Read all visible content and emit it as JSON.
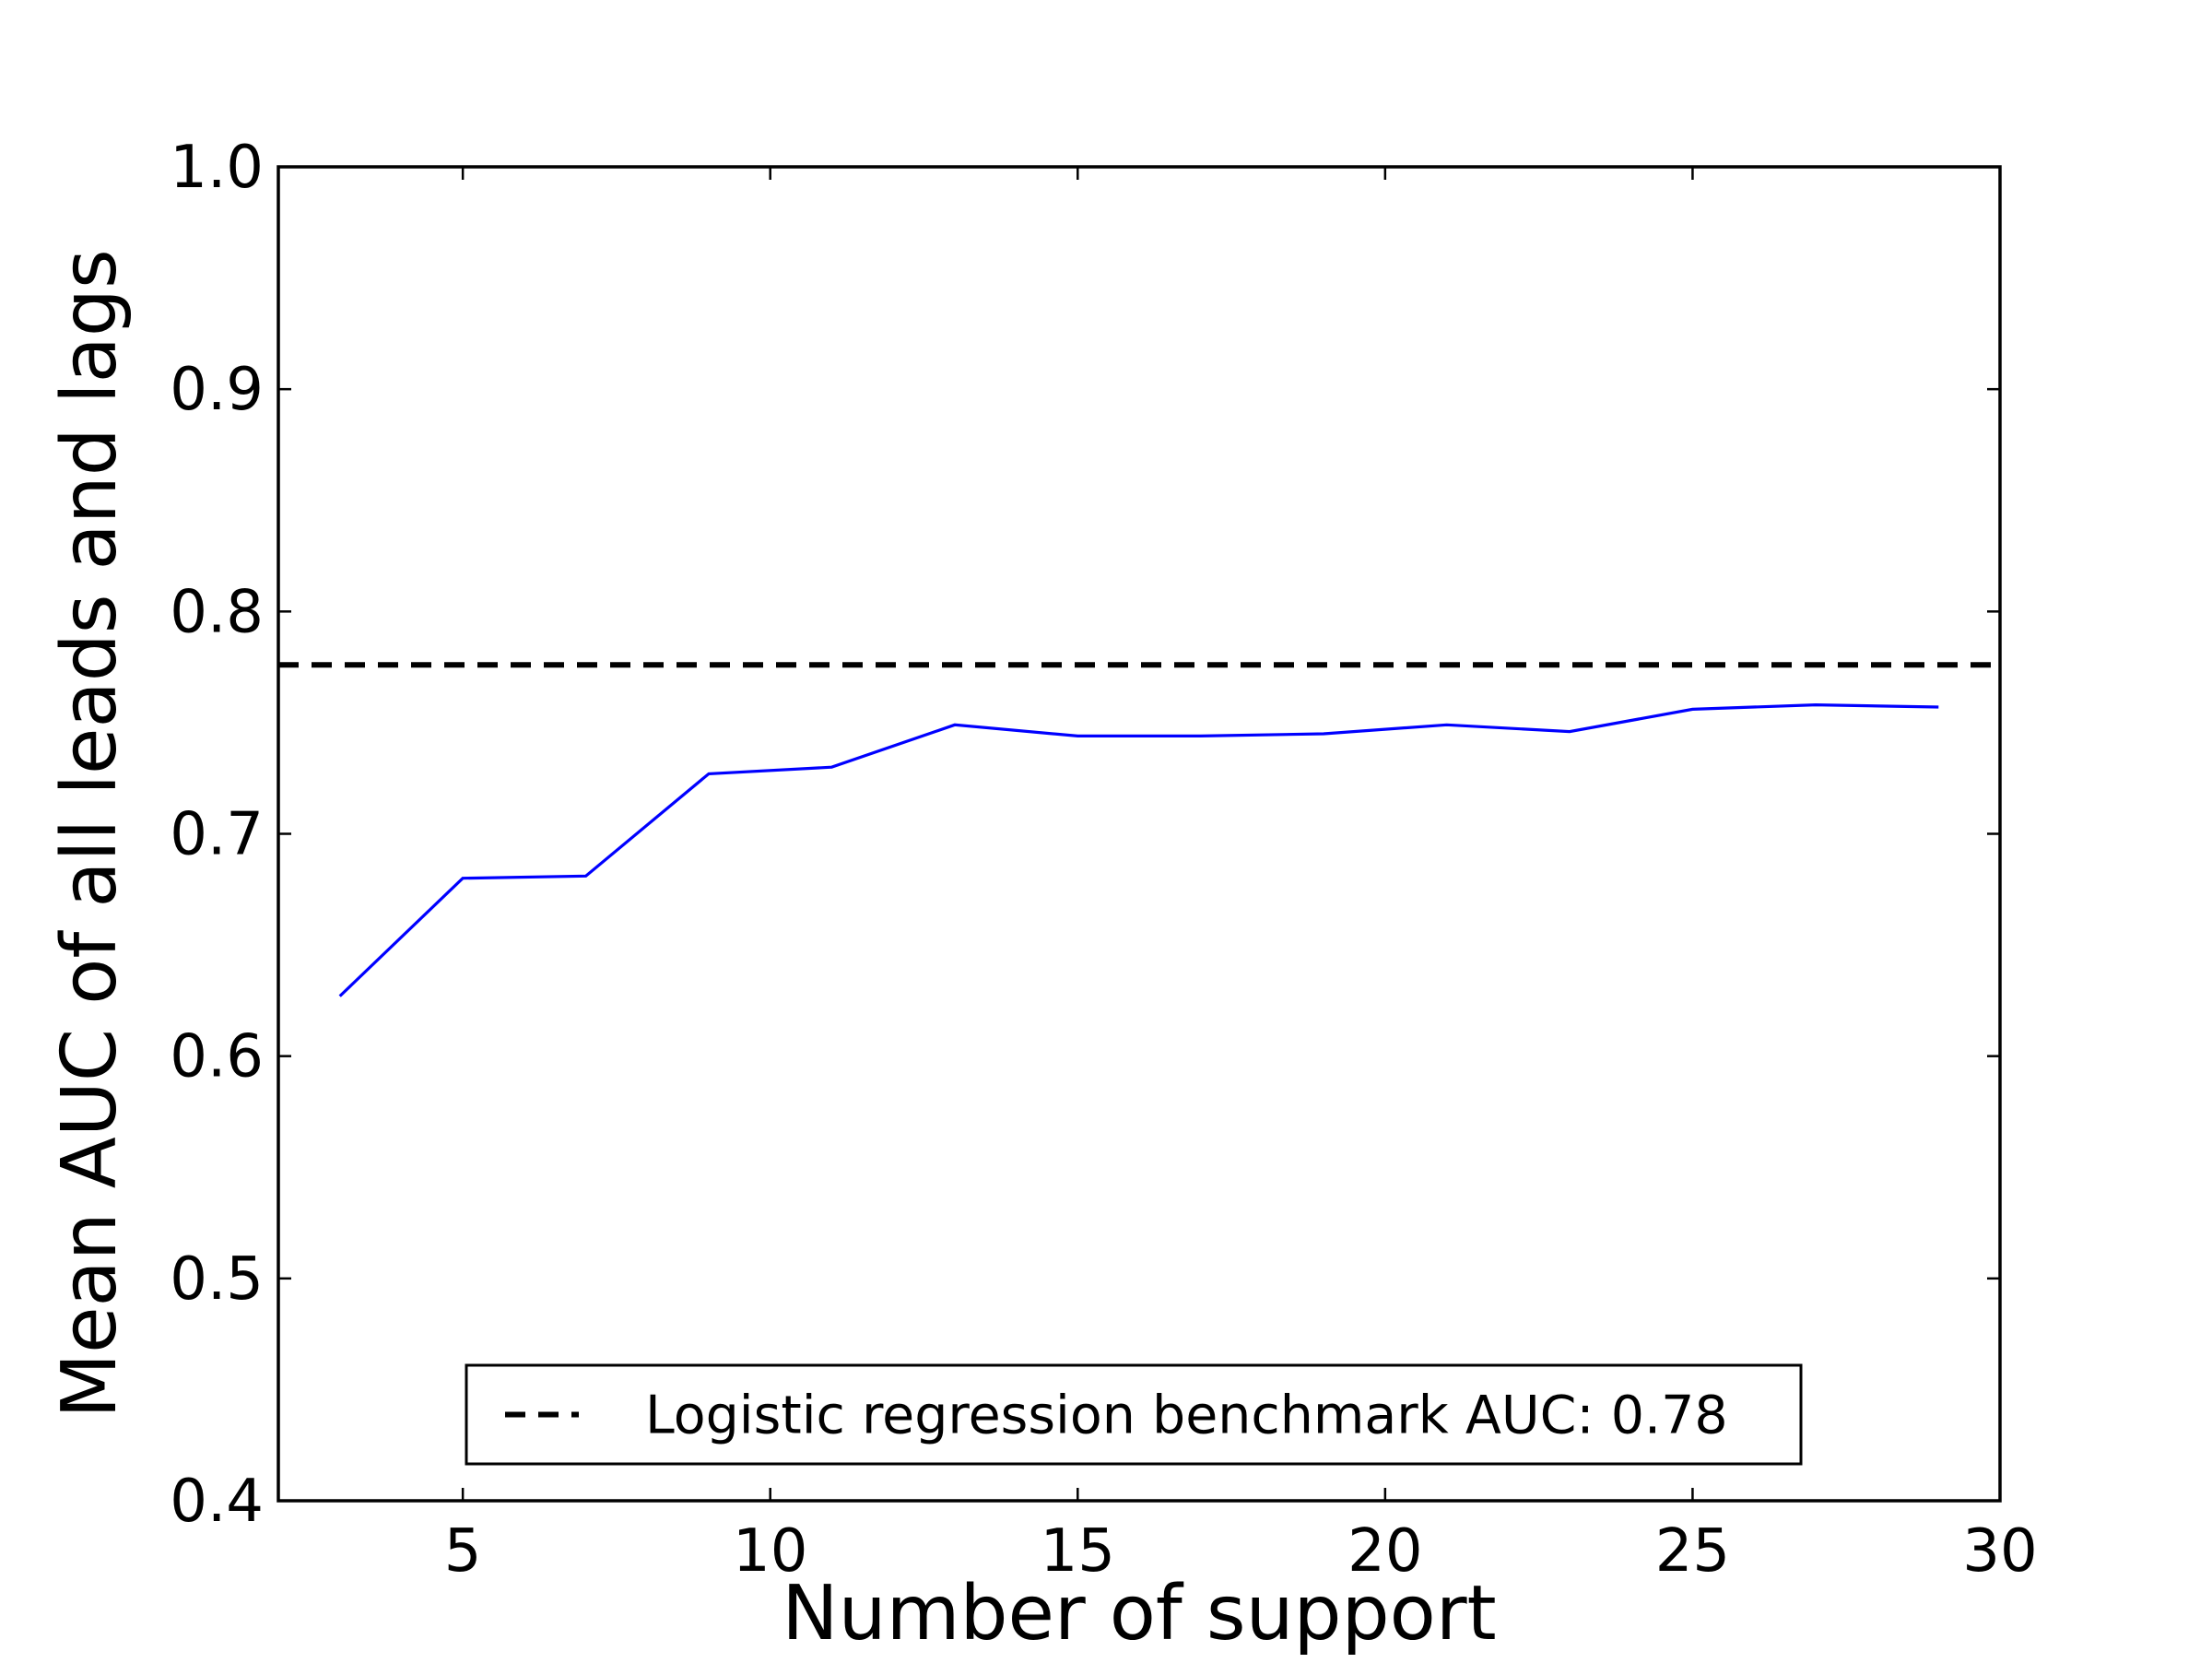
{
  "chart_data": {
    "type": "line",
    "title": "",
    "xlabel": "Number of support",
    "ylabel": "Mean AUC of all leads and lags",
    "xlim": [
      2,
      30
    ],
    "ylim": [
      0.4,
      1.0
    ],
    "xticks": [
      5,
      10,
      15,
      20,
      25,
      30
    ],
    "xtick_labels": [
      "5",
      "10",
      "15",
      "20",
      "25",
      "30"
    ],
    "yticks": [
      0.4,
      0.5,
      0.6,
      0.7,
      0.8,
      0.9,
      1.0
    ],
    "ytick_labels": [
      "0.4",
      "0.5",
      "0.6",
      "0.7",
      "0.8",
      "0.9",
      "1.0"
    ],
    "grid": false,
    "legend_position": "lower-center",
    "series": [
      {
        "color": "#0000ff",
        "line_style": "solid",
        "x": [
          3,
          5,
          7,
          9,
          11,
          13,
          15,
          17,
          19,
          21,
          23,
          25,
          27,
          29
        ],
        "y": [
          0.627,
          0.68,
          0.681,
          0.727,
          0.73,
          0.749,
          0.744,
          0.744,
          0.745,
          0.749,
          0.746,
          0.756,
          0.758,
          0.757
        ]
      }
    ],
    "reference_lines": [
      {
        "name": "Logistic regression benchmark AUC: 0.78",
        "orientation": "horizontal",
        "y": 0.776,
        "color": "#000000",
        "line_style": "dashed"
      }
    ]
  }
}
